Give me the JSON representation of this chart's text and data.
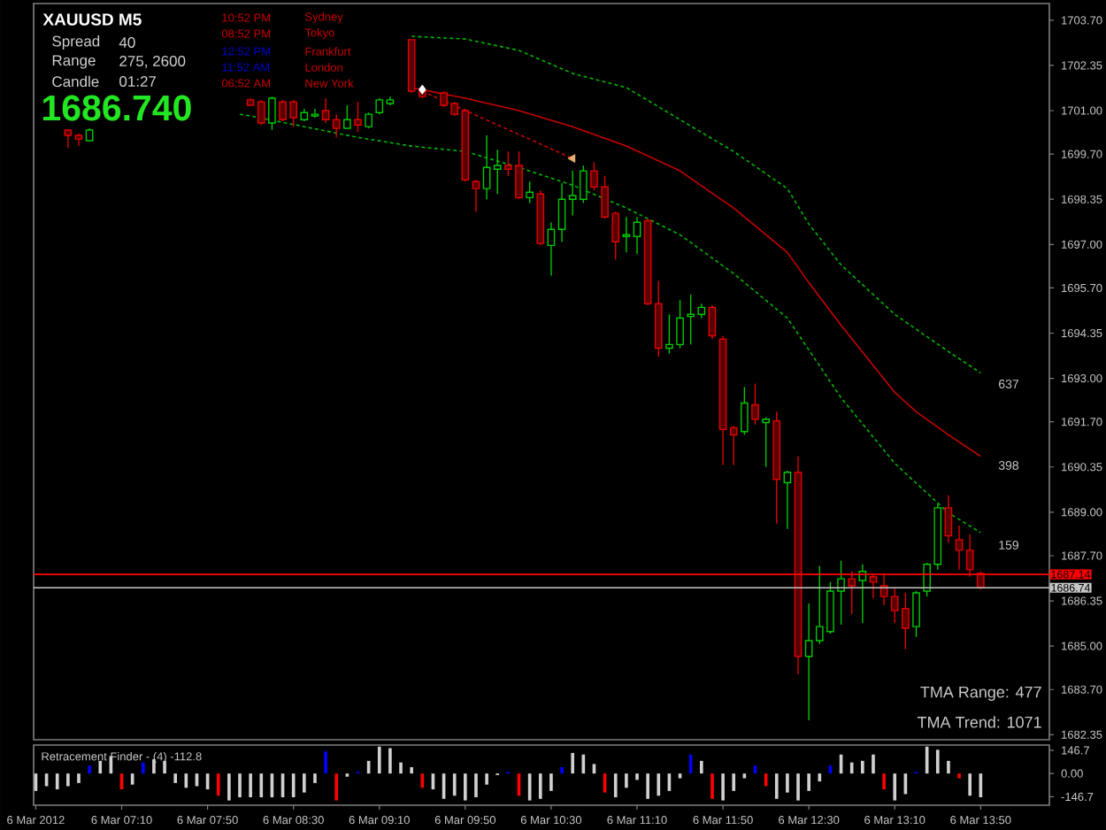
{
  "chart_data": [
    {
      "type": "candlestick",
      "title": "XAUUSD M5",
      "x": [
        "2012-03-06T06:45",
        "2012-03-06T06:50",
        "2012-03-06T06:55",
        "2012-03-06T08:10",
        "2012-03-06T08:15",
        "2012-03-06T08:20",
        "2012-03-06T08:25",
        "2012-03-06T08:30",
        "2012-03-06T08:35",
        "2012-03-06T08:40",
        "2012-03-06T08:45",
        "2012-03-06T08:50",
        "2012-03-06T08:55",
        "2012-03-06T09:00",
        "2012-03-06T09:05",
        "2012-03-06T09:10",
        "2012-03-06T09:15",
        "2012-03-06T09:25",
        "2012-03-06T09:30",
        "2012-03-06T09:40",
        "2012-03-06T09:45",
        "2012-03-06T09:50",
        "2012-03-06T09:55",
        "2012-03-06T10:00",
        "2012-03-06T10:05",
        "2012-03-06T10:10",
        "2012-03-06T10:15",
        "2012-03-06T10:20",
        "2012-03-06T10:25",
        "2012-03-06T10:30",
        "2012-03-06T10:35",
        "2012-03-06T10:40",
        "2012-03-06T10:45",
        "2012-03-06T10:50",
        "2012-03-06T10:55",
        "2012-03-06T11:00",
        "2012-03-06T11:05",
        "2012-03-06T11:10",
        "2012-03-06T11:15",
        "2012-03-06T11:20",
        "2012-03-06T11:25",
        "2012-03-06T11:30",
        "2012-03-06T11:35",
        "2012-03-06T11:40",
        "2012-03-06T11:45",
        "2012-03-06T11:50",
        "2012-03-06T11:55",
        "2012-03-06T12:00",
        "2012-03-06T12:05",
        "2012-03-06T12:10",
        "2012-03-06T12:15",
        "2012-03-06T12:20",
        "2012-03-06T12:25",
        "2012-03-06T12:30",
        "2012-03-06T12:35",
        "2012-03-06T12:40",
        "2012-03-06T12:45",
        "2012-03-06T12:50",
        "2012-03-06T12:55",
        "2012-03-06T13:00",
        "2012-03-06T13:05",
        "2012-03-06T13:10",
        "2012-03-06T13:15",
        "2012-03-06T13:20",
        "2012-03-06T13:25",
        "2012-03-06T13:30",
        "2012-03-06T13:35",
        "2012-03-06T13:40",
        "2012-03-06T13:45",
        "2012-03-06T13:50"
      ],
      "ohlc": [
        [
          1700.42,
          1700.42,
          1699.89,
          1700.26
        ],
        [
          1700.26,
          1700.31,
          1699.94,
          1700.15
        ],
        [
          1700.1,
          1700.47,
          1700.1,
          1700.42
        ],
        [
          1701.32,
          1701.37,
          1701.16,
          1701.16
        ],
        [
          1701.26,
          1701.32,
          1700.57,
          1700.63
        ],
        [
          1700.63,
          1701.42,
          1700.42,
          1701.37
        ],
        [
          1701.26,
          1701.32,
          1700.68,
          1700.73
        ],
        [
          1701.26,
          1701.32,
          1700.52,
          1700.79
        ],
        [
          1700.73,
          1701.05,
          1700.68,
          1700.94
        ],
        [
          1700.84,
          1701.05,
          1700.79,
          1700.89
        ],
        [
          1701.0,
          1701.37,
          1700.63,
          1700.73
        ],
        [
          1700.73,
          1700.89,
          1700.2,
          1700.47
        ],
        [
          1700.47,
          1701.16,
          1700.47,
          1700.73
        ],
        [
          1700.73,
          1701.26,
          1700.36,
          1700.57
        ],
        [
          1700.52,
          1700.94,
          1700.47,
          1700.89
        ],
        [
          1700.94,
          1701.37,
          1700.89,
          1701.32
        ],
        [
          1701.21,
          1701.42,
          1701.16,
          1701.32
        ],
        [
          1703.12,
          1703.12,
          1701.53,
          1701.58
        ],
        [
          1701.58,
          1701.69,
          1701.37,
          1701.42
        ],
        [
          1701.53,
          1701.58,
          1701.1,
          1701.16
        ],
        [
          1701.21,
          1701.26,
          1700.84,
          1700.89
        ],
        [
          1701.0,
          1701.05,
          1698.88,
          1698.93
        ],
        [
          1698.88,
          1698.93,
          1697.98,
          1698.67
        ],
        [
          1698.67,
          1700.26,
          1698.35,
          1699.3
        ],
        [
          1699.25,
          1699.83,
          1698.51,
          1699.36
        ],
        [
          1699.36,
          1699.78,
          1699.04,
          1699.25
        ],
        [
          1699.36,
          1699.78,
          1698.35,
          1698.4
        ],
        [
          1698.4,
          1698.88,
          1698.24,
          1698.56
        ],
        [
          1698.51,
          1698.62,
          1696.97,
          1697.03
        ],
        [
          1696.97,
          1697.66,
          1696.07,
          1697.45
        ],
        [
          1697.45,
          1698.83,
          1697.08,
          1698.35
        ],
        [
          1698.35,
          1699.2,
          1697.87,
          1698.46
        ],
        [
          1698.35,
          1699.36,
          1698.24,
          1699.2
        ],
        [
          1699.2,
          1699.46,
          1698.62,
          1698.72
        ],
        [
          1698.72,
          1699.04,
          1697.77,
          1697.82
        ],
        [
          1697.93,
          1697.98,
          1696.55,
          1697.08
        ],
        [
          1697.24,
          1697.82,
          1696.76,
          1697.29
        ],
        [
          1697.24,
          1697.82,
          1696.71,
          1697.66
        ],
        [
          1697.71,
          1697.76,
          1695.18,
          1695.23
        ],
        [
          1695.23,
          1695.91,
          1693.64,
          1693.9
        ],
        [
          1693.9,
          1694.91,
          1693.74,
          1694.01
        ],
        [
          1694.01,
          1695.34,
          1693.9,
          1694.8
        ],
        [
          1694.85,
          1695.5,
          1694.01,
          1694.91
        ],
        [
          1694.91,
          1695.23,
          1694.8,
          1695.12
        ],
        [
          1695.12,
          1695.18,
          1694.17,
          1694.27
        ],
        [
          1694.17,
          1694.27,
          1690.41,
          1691.47
        ],
        [
          1691.52,
          1691.57,
          1690.41,
          1691.31
        ],
        [
          1691.41,
          1692.74,
          1691.31,
          1692.26
        ],
        [
          1692.21,
          1692.84,
          1691.62,
          1691.78
        ],
        [
          1691.68,
          1691.83,
          1690.35,
          1691.78
        ],
        [
          1691.73,
          1692.0,
          1688.66,
          1689.98
        ],
        [
          1689.88,
          1690.24,
          1688.5,
          1690.19
        ],
        [
          1690.19,
          1690.67,
          1684.16,
          1684.69
        ],
        [
          1684.69,
          1686.27,
          1682.78,
          1685.16
        ],
        [
          1685.16,
          1687.39,
          1685.06,
          1685.58
        ],
        [
          1685.43,
          1686.91,
          1685.37,
          1686.64
        ],
        [
          1686.64,
          1687.55,
          1685.64,
          1687.01
        ],
        [
          1687.01,
          1687.23,
          1685.96,
          1686.8
        ],
        [
          1686.96,
          1687.44,
          1685.69,
          1687.23
        ],
        [
          1687.07,
          1687.17,
          1686.43,
          1686.91
        ],
        [
          1686.8,
          1687.17,
          1686.22,
          1686.48
        ],
        [
          1686.48,
          1686.75,
          1685.69,
          1686.06
        ],
        [
          1686.12,
          1686.59,
          1684.9,
          1685.53
        ],
        [
          1685.58,
          1686.64,
          1685.27,
          1686.59
        ],
        [
          1686.64,
          1687.49,
          1686.48,
          1687.44
        ],
        [
          1687.44,
          1689.24,
          1687.28,
          1689.13
        ],
        [
          1689.13,
          1689.51,
          1688.08,
          1688.29
        ],
        [
          1688.18,
          1688.6,
          1687.28,
          1687.86
        ],
        [
          1687.86,
          1688.34,
          1687.07,
          1687.28
        ],
        [
          1687.17,
          1687.23,
          1686.69,
          1686.74
        ]
      ],
      "colors": [
        "#e00000",
        "#e00000",
        "#00c800",
        "#e00000",
        "#e00000",
        "#00c800",
        "#e00000",
        "#e00000",
        "#00c800",
        "#00c800",
        "#e00000",
        "#e00000",
        "#00c800",
        "#e00000",
        "#00c800",
        "#00c800",
        "#00c800",
        "#e00000",
        "#e00000",
        "#e00000",
        "#e00000",
        "#e00000",
        "#e00000",
        "#00c800",
        "#00c800",
        "#e00000",
        "#e00000",
        "#00c800",
        "#e00000",
        "#00c800",
        "#00c800",
        "#00c800",
        "#00c800",
        "#e00000",
        "#e00000",
        "#e00000",
        "#00c800",
        "#00c800",
        "#e00000",
        "#e00000",
        "#00c800",
        "#00c800",
        "#00c800",
        "#00c800",
        "#e00000",
        "#e00000",
        "#e00000",
        "#00c800",
        "#e00000",
        "#00c800",
        "#e00000",
        "#00c800",
        "#e00000",
        "#00c800",
        "#00c800",
        "#00c800",
        "#00c800",
        "#e00000",
        "#00c800",
        "#e00000",
        "#e00000",
        "#e00000",
        "#e00000",
        "#00c800",
        "#00c800",
        "#00c800",
        "#e00000",
        "#e00000",
        "#e00000",
        "#e00000"
      ],
      "series": [
        {
          "type": "line",
          "color": "#00b400",
          "line_style": "dashed",
          "x": [
            "2012-03-06T09:25",
            "2012-03-06T09:50",
            "2012-03-06T10:15",
            "2012-03-06T10:40",
            "2012-03-06T11:05",
            "2012-03-06T11:30",
            "2012-03-06T11:55",
            "2012-03-06T12:20",
            "2012-03-06T12:30",
            "2012-03-06T12:45",
            "2012-03-06T13:10",
            "2012-03-06T13:35",
            "2012-03-06T13:50"
          ],
          "values": [
            1703.22,
            1703.14,
            1702.8,
            1702.11,
            1701.69,
            1700.73,
            1699.78,
            1698.67,
            1697.61,
            1696.39,
            1694.91,
            1693.8,
            1693.16
          ]
        },
        {
          "type": "line",
          "color": "#c80000",
          "line_style": "solid",
          "x": [
            "2012-03-06T09:25",
            "2012-03-06T09:50",
            "2012-03-06T10:15",
            "2012-03-06T10:40",
            "2012-03-06T11:05",
            "2012-03-06T11:30",
            "2012-03-06T11:55",
            "2012-03-06T12:20",
            "2012-03-06T12:30",
            "2012-03-06T12:45",
            "2012-03-06T13:10",
            "2012-03-06T13:20",
            "2012-03-06T13:35",
            "2012-03-06T13:50"
          ],
          "values": [
            1701.69,
            1701.37,
            1701.0,
            1700.52,
            1699.94,
            1699.2,
            1698.09,
            1696.76,
            1695.86,
            1694.59,
            1692.58,
            1692.0,
            1691.31,
            1690.67
          ]
        },
        {
          "type": "line",
          "color": "#00b400",
          "line_style": "dashed",
          "x": [
            "2012-03-06T08:05",
            "2012-03-06T08:10",
            "2012-03-06T08:35",
            "2012-03-06T09:00",
            "2012-03-06T09:25",
            "2012-03-06T09:50",
            "2012-03-06T10:15",
            "2012-03-06T10:40",
            "2012-03-06T11:05",
            "2012-03-06T11:30",
            "2012-03-06T11:55",
            "2012-03-06T12:20",
            "2012-03-06T12:45",
            "2012-03-06T13:10",
            "2012-03-06T13:35",
            "2012-03-06T13:50"
          ],
          "values": [
            1700.89,
            1700.84,
            1700.52,
            1700.2,
            1699.94,
            1699.78,
            1699.3,
            1698.77,
            1698.09,
            1697.29,
            1696.13,
            1694.8,
            1692.42,
            1690.46,
            1688.98,
            1688.39
          ]
        },
        {
          "type": "line",
          "color": "#d00000",
          "line_style": "dashed",
          "x": [
            "2012-03-06T09:30",
            "2012-03-06T10:40"
          ],
          "values": [
            1701.58,
            1699.57
          ]
        },
        {
          "type": "scatter",
          "color": "#ffffff",
          "marker": "diamond",
          "x": [
            "2012-03-06T09:30"
          ],
          "values": [
            1701.63
          ]
        },
        {
          "type": "scatter",
          "color": "#e8b070",
          "marker": "triangle",
          "x": [
            "2012-03-06T10:40"
          ],
          "values": [
            1699.57
          ]
        }
      ],
      "xlim": [
        "2012-03-06T06:29",
        "2012-03-06T14:22"
      ],
      "ylim": [
        1682.2,
        1704.2
      ],
      "yticks": [
        {
          "value": 1703.7,
          "label": "1703.70"
        },
        1702.35,
        {
          "value": 1701,
          "label": "1701.00"
        },
        {
          "value": 1699.7,
          "label": "1699.70"
        },
        1698.35,
        {
          "value": 1697,
          "label": "1697.00"
        },
        {
          "value": 1695.7,
          "label": "1695.70"
        },
        1694.35,
        {
          "value": 1693,
          "label": "1693.00"
        },
        {
          "value": 1691.7,
          "label": "1691.70"
        },
        1690.35,
        {
          "value": 1689,
          "label": "1689.00"
        },
        {
          "value": 1687.7,
          "label": "1687.70"
        },
        1686.35,
        {
          "value": 1685,
          "label": "1685.00"
        },
        {
          "value": 1683.7,
          "label": "1683.70"
        },
        1682.35
      ],
      "tick_labels": "y",
      "ref_lines": [
        {
          "axis": "y",
          "value": 1687.14,
          "label": "1687.14",
          "color": "#ff0000"
        },
        {
          "axis": "y",
          "value": 1686.74,
          "label": "1686.74",
          "color": "#c8c8c8"
        }
      ],
      "annotations": [
        "Spread",
        "40",
        "Range",
        "275, 2600",
        "Candle",
        "01:27",
        "1686.740",
        "10:52 PM",
        "Sydney",
        "08:52 PM",
        "Tokyo",
        "12:52 PM",
        "Frankfurt",
        "11:52 AM",
        "London",
        "06:52 AM",
        "New York",
        "TMA Range: 477",
        "TMA Trend: 1071",
        "637",
        "398",
        "159"
      ]
    },
    {
      "type": "bar",
      "title": "Retracement Finder - (4) -112.8",
      "x": [
        "2012-03-06T06:30",
        "2012-03-06T06:35",
        "2012-03-06T06:40",
        "2012-03-06T06:45",
        "2012-03-06T06:50",
        "2012-03-06T06:55",
        "2012-03-06T07:00",
        "2012-03-06T07:05",
        "2012-03-06T07:10",
        "2012-03-06T07:15",
        "2012-03-06T07:20",
        "2012-03-06T07:25",
        "2012-03-06T07:30",
        "2012-03-06T07:35",
        "2012-03-06T07:40",
        "2012-03-06T07:45",
        "2012-03-06T07:50",
        "2012-03-06T07:55",
        "2012-03-06T08:00",
        "2012-03-06T08:05",
        "2012-03-06T08:10",
        "2012-03-06T08:15",
        "2012-03-06T08:20",
        "2012-03-06T08:25",
        "2012-03-06T08:30",
        "2012-03-06T08:35",
        "2012-03-06T08:40",
        "2012-03-06T08:45",
        "2012-03-06T08:50",
        "2012-03-06T08:55",
        "2012-03-06T09:00",
        "2012-03-06T09:05",
        "2012-03-06T09:10",
        "2012-03-06T09:15",
        "2012-03-06T09:20",
        "2012-03-06T09:25",
        "2012-03-06T09:30",
        "2012-03-06T09:35",
        "2012-03-06T09:40",
        "2012-03-06T09:45",
        "2012-03-06T09:50",
        "2012-03-06T09:55",
        "2012-03-06T10:00",
        "2012-03-06T10:05",
        "2012-03-06T10:10",
        "2012-03-06T10:15",
        "2012-03-06T10:20",
        "2012-03-06T10:25",
        "2012-03-06T10:30",
        "2012-03-06T10:35",
        "2012-03-06T10:40",
        "2012-03-06T10:45",
        "2012-03-06T10:50",
        "2012-03-06T10:55",
        "2012-03-06T11:00",
        "2012-03-06T11:05",
        "2012-03-06T11:10",
        "2012-03-06T11:15",
        "2012-03-06T11:20",
        "2012-03-06T11:25",
        "2012-03-06T11:30",
        "2012-03-06T11:35",
        "2012-03-06T11:40",
        "2012-03-06T11:45",
        "2012-03-06T11:50",
        "2012-03-06T11:55",
        "2012-03-06T12:00",
        "2012-03-06T12:05",
        "2012-03-06T12:10",
        "2012-03-06T12:15",
        "2012-03-06T12:20",
        "2012-03-06T12:25",
        "2012-03-06T12:30",
        "2012-03-06T12:35",
        "2012-03-06T12:40",
        "2012-03-06T12:45",
        "2012-03-06T12:50",
        "2012-03-06T12:55",
        "2012-03-06T13:00",
        "2012-03-06T13:05",
        "2012-03-06T13:10",
        "2012-03-06T13:15",
        "2012-03-06T13:20",
        "2012-03-06T13:25",
        "2012-03-06T13:30",
        "2012-03-06T13:35",
        "2012-03-06T13:40",
        "2012-03-06T13:45",
        "2012-03-06T13:50"
      ],
      "values": [
        -110,
        -80,
        -100,
        -80,
        -60,
        50,
        80,
        110,
        -100,
        -70,
        70,
        90,
        80,
        -60,
        -90,
        -80,
        -100,
        -140,
        -170,
        -150,
        -150,
        -150,
        -150,
        -150,
        -150,
        -120,
        -60,
        140,
        -170,
        -20,
        10,
        80,
        170,
        160,
        70,
        40,
        -90,
        -100,
        -160,
        -140,
        -170,
        -150,
        -70,
        -10,
        10,
        -140,
        -170,
        -160,
        -110,
        40,
        130,
        120,
        60,
        -120,
        -150,
        -90,
        -40,
        -160,
        -140,
        -110,
        -30,
        120,
        80,
        -160,
        -170,
        -110,
        -30,
        50,
        -80,
        -160,
        -120,
        -170,
        -110,
        -50,
        50,
        120,
        70,
        80,
        120,
        -100,
        -170,
        -130,
        10,
        170,
        150,
        80,
        -30,
        -140,
        -150
      ],
      "colors": [
        "#d0d0d0",
        "#d0d0d0",
        "#d0d0d0",
        "#d0d0d0",
        "#d0d0d0",
        "#0000ff",
        "#d0d0d0",
        "#d0d0d0",
        "#ff0000",
        "#d0d0d0",
        "#0000ff",
        "#d0d0d0",
        "#d0d0d0",
        "#d0d0d0",
        "#d0d0d0",
        "#d0d0d0",
        "#d0d0d0",
        "#ff0000",
        "#d0d0d0",
        "#d0d0d0",
        "#d0d0d0",
        "#d0d0d0",
        "#d0d0d0",
        "#d0d0d0",
        "#d0d0d0",
        "#d0d0d0",
        "#d0d0d0",
        "#0000ff",
        "#ff0000",
        "#d0d0d0",
        "#0000ff",
        "#d0d0d0",
        "#d0d0d0",
        "#d0d0d0",
        "#d0d0d0",
        "#d0d0d0",
        "#ff0000",
        "#d0d0d0",
        "#d0d0d0",
        "#d0d0d0",
        "#d0d0d0",
        "#d0d0d0",
        "#d0d0d0",
        "#d0d0d0",
        "#0000ff",
        "#ff0000",
        "#d0d0d0",
        "#d0d0d0",
        "#d0d0d0",
        "#0000ff",
        "#d0d0d0",
        "#d0d0d0",
        "#d0d0d0",
        "#ff0000",
        "#d0d0d0",
        "#d0d0d0",
        "#d0d0d0",
        "#d0d0d0",
        "#d0d0d0",
        "#d0d0d0",
        "#d0d0d0",
        "#0000ff",
        "#d0d0d0",
        "#ff0000",
        "#d0d0d0",
        "#d0d0d0",
        "#d0d0d0",
        "#0000ff",
        "#ff0000",
        "#d0d0d0",
        "#d0d0d0",
        "#d0d0d0",
        "#d0d0d0",
        "#d0d0d0",
        "#0000ff",
        "#d0d0d0",
        "#d0d0d0",
        "#d0d0d0",
        "#d0d0d0",
        "#ff0000",
        "#d0d0d0",
        "#d0d0d0",
        "#0000ff",
        "#d0d0d0",
        "#d0d0d0",
        "#d0d0d0",
        "#ff0000",
        "#d0d0d0",
        "#d0d0d0"
      ],
      "xlim": [
        "2012-03-06T06:29",
        "2012-03-06T14:22"
      ],
      "ylim": [
        -200,
        180
      ],
      "xticks": [
        {
          "value": "2012-03-06T06:30",
          "label": "6 Mar 2012"
        },
        {
          "value": "2012-03-06T07:10",
          "label": "6 Mar 07:10"
        },
        {
          "value": "2012-03-06T07:50",
          "label": "6 Mar 07:50"
        },
        {
          "value": "2012-03-06T08:30",
          "label": "6 Mar 08:30"
        },
        {
          "value": "2012-03-06T09:10",
          "label": "6 Mar 09:10"
        },
        {
          "value": "2012-03-06T09:50",
          "label": "6 Mar 09:50"
        },
        {
          "value": "2012-03-06T10:30",
          "label": "6 Mar 10:30"
        },
        {
          "value": "2012-03-06T11:10",
          "label": "6 Mar 11:10"
        },
        {
          "value": "2012-03-06T11:50",
          "label": "6 Mar 11:50"
        },
        {
          "value": "2012-03-06T12:30",
          "label": "6 Mar 12:30"
        },
        {
          "value": "2012-03-06T13:10",
          "label": "6 Mar 13:10"
        },
        {
          "value": "2012-03-06T13:50",
          "label": "6 Mar 13:50"
        }
      ],
      "yticks": [
        146.7,
        {
          "value": 0,
          "label": "0.00"
        },
        -146.7
      ]
    }
  ]
}
